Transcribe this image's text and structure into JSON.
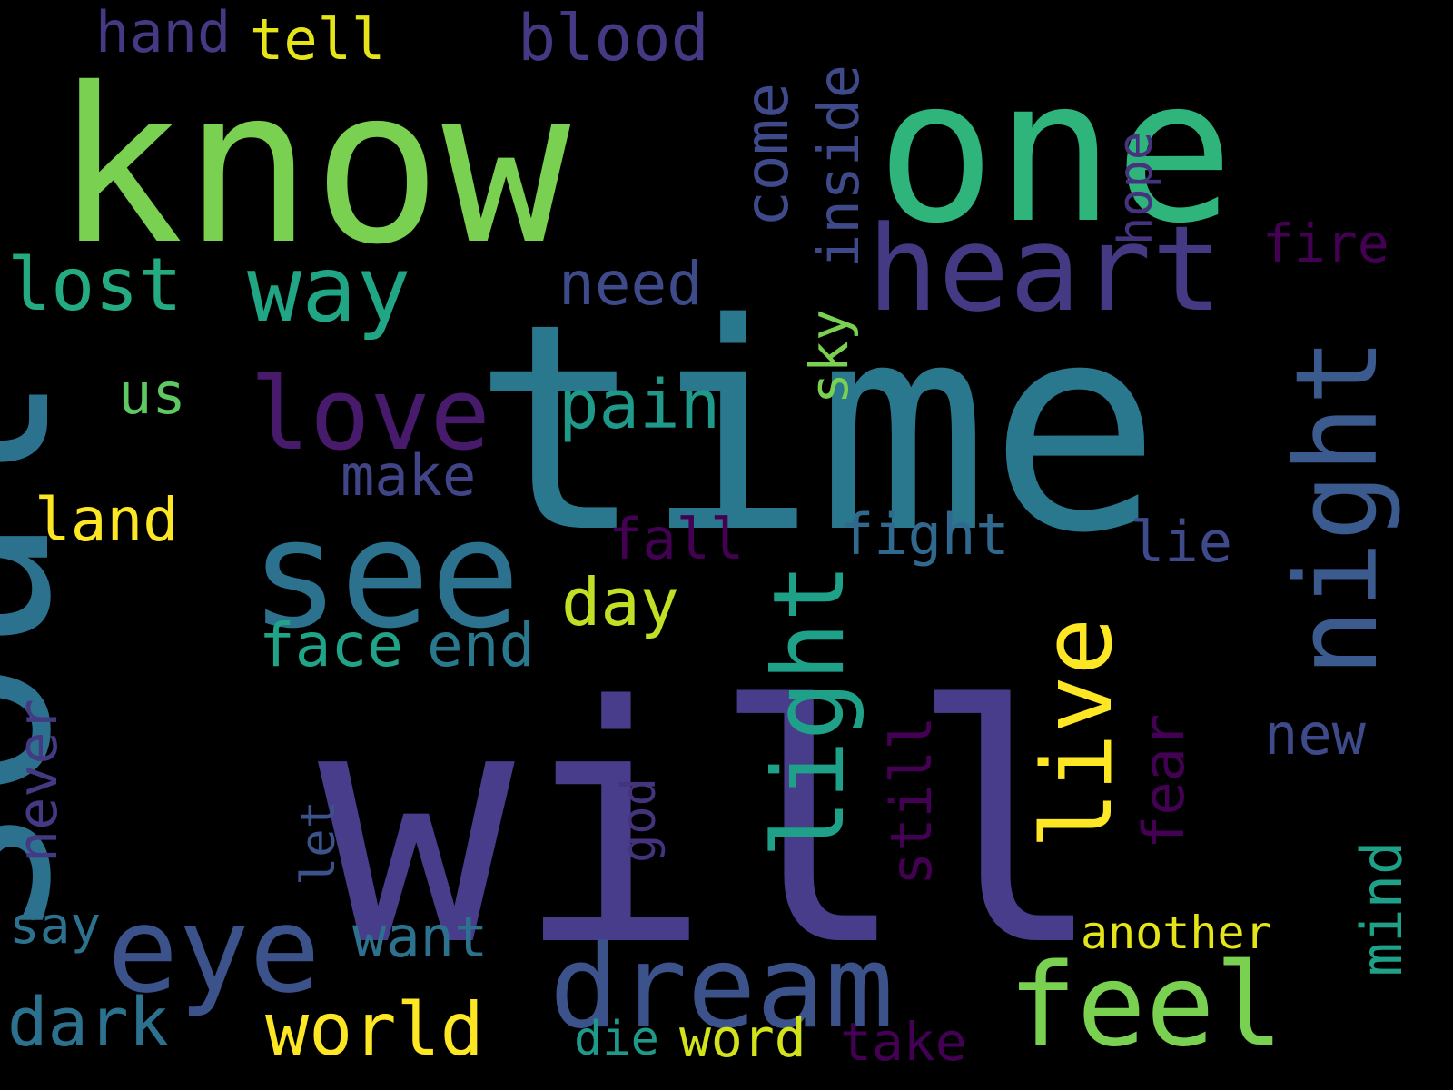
{
  "word_cloud": {
    "background": "#000000",
    "words": [
      {
        "text": "will",
        "color": "#483d8b"
      },
      {
        "text": "time",
        "color": "#2a788e"
      },
      {
        "text": "soul",
        "color": "#2c728e"
      },
      {
        "text": "know",
        "color": "#7ad151"
      },
      {
        "text": "one",
        "color": "#2fb47c"
      },
      {
        "text": "see",
        "color": "#2c728e"
      },
      {
        "text": "heart",
        "color": "#443a83"
      },
      {
        "text": "eye",
        "color": "#3b528b"
      },
      {
        "text": "dream",
        "color": "#3b528b"
      },
      {
        "text": "feel",
        "color": "#7ad151"
      },
      {
        "text": "light",
        "color": "#1fa088"
      },
      {
        "text": "live",
        "color": "#fde725"
      },
      {
        "text": "night",
        "color": "#3b5a8d"
      },
      {
        "text": "love",
        "color": "#481a6c"
      },
      {
        "text": "way",
        "color": "#21a685"
      },
      {
        "text": "lost",
        "color": "#25ab82"
      },
      {
        "text": "world",
        "color": "#fde725"
      },
      {
        "text": "come",
        "color": "#3e4a89"
      },
      {
        "text": "inside",
        "color": "#3e4a89"
      },
      {
        "text": "pain",
        "color": "#1f9a8a"
      },
      {
        "text": "need",
        "color": "#3e4a89"
      },
      {
        "text": "day",
        "color": "#c0df25"
      },
      {
        "text": "fear",
        "color": "#440154"
      },
      {
        "text": "still",
        "color": "#440154"
      },
      {
        "text": "never",
        "color": "#443983"
      },
      {
        "text": "face",
        "color": "#20a386"
      },
      {
        "text": "end",
        "color": "#2a788e"
      },
      {
        "text": "fight",
        "color": "#31688e"
      },
      {
        "text": "fall",
        "color": "#440154"
      },
      {
        "text": "land",
        "color": "#fde725"
      },
      {
        "text": "make",
        "color": "#414487"
      },
      {
        "text": "us",
        "color": "#5ec962"
      },
      {
        "text": "sky",
        "color": "#7ad151"
      },
      {
        "text": "hope",
        "color": "#46337e"
      },
      {
        "text": "fire",
        "color": "#440154"
      },
      {
        "text": "lie",
        "color": "#3e4a89"
      },
      {
        "text": "new",
        "color": "#3e4a89"
      },
      {
        "text": "mind",
        "color": "#1fa088"
      },
      {
        "text": "god",
        "color": "#46337e"
      },
      {
        "text": "let",
        "color": "#3b528b"
      },
      {
        "text": "want",
        "color": "#2c728e"
      },
      {
        "text": "say",
        "color": "#2c728e"
      },
      {
        "text": "dark",
        "color": "#2c728e"
      },
      {
        "text": "die",
        "color": "#1f9a8a"
      },
      {
        "text": "word",
        "color": "#d2e21b"
      },
      {
        "text": "take",
        "color": "#440154"
      },
      {
        "text": "another",
        "color": "#e5e419"
      },
      {
        "text": "hand",
        "color": "#443983"
      },
      {
        "text": "tell",
        "color": "#e5e419"
      },
      {
        "text": "blood",
        "color": "#443983"
      }
    ]
  }
}
